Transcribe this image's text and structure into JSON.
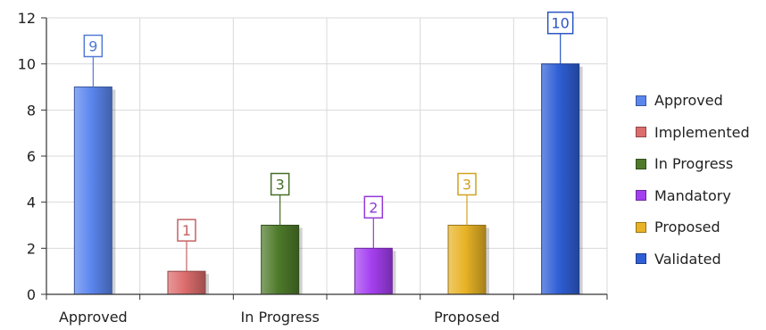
{
  "chart_data": {
    "type": "bar",
    "categories": [
      "Approved",
      "Implemented",
      "In Progress",
      "Mandatory",
      "Proposed",
      "Validated"
    ],
    "values": [
      9,
      1,
      3,
      2,
      3,
      10
    ],
    "colors": [
      "#5b86ee",
      "#dc6d6d",
      "#4e7a2a",
      "#a43ff0",
      "#e8b326",
      "#2f5fd6"
    ],
    "x_tick_labels": [
      "Approved",
      "In Progress",
      "Proposed"
    ],
    "ylim": [
      0,
      12
    ],
    "y_ticks": [
      0,
      2,
      4,
      6,
      8,
      10,
      12
    ],
    "grid": true,
    "data_labels": true,
    "legend_position": "right",
    "title": "",
    "xlabel": "",
    "ylabel": ""
  },
  "legend": {
    "items": [
      {
        "label": "Approved",
        "color": "#5b86ee"
      },
      {
        "label": "Implemented",
        "color": "#dc6d6d"
      },
      {
        "label": "In Progress",
        "color": "#4e7a2a"
      },
      {
        "label": "Mandatory",
        "color": "#a43ff0"
      },
      {
        "label": "Proposed",
        "color": "#e8b326"
      },
      {
        "label": "Validated",
        "color": "#2f5fd6"
      }
    ]
  }
}
